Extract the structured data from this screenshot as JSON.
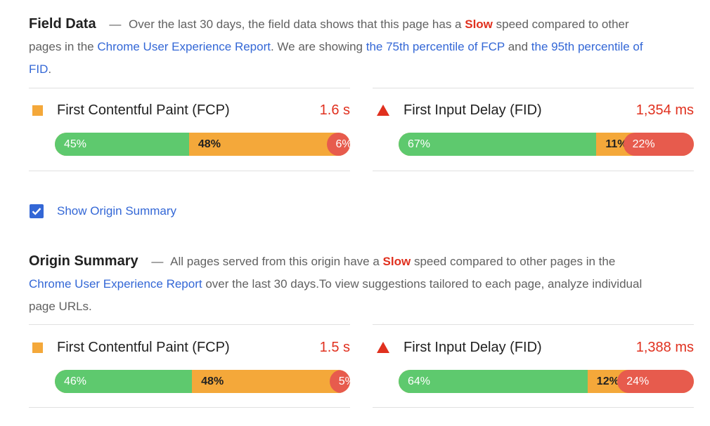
{
  "field_data": {
    "title": "Field Data",
    "dash": "—",
    "desc_1": "Over the last 30 days, the field data shows that this page has a",
    "slow_word": "Slow",
    "desc_2": "speed compared to other pages in the",
    "report_link": "Chrome User Experience Report",
    "desc_3": ". We are showing",
    "fcp_link": "the 75th percentile of FCP",
    "desc_4": "and",
    "fid_link": "the 95th percentile of FID",
    "desc_5": ".",
    "fcp": {
      "label": "First Contentful Paint (FCP)",
      "value": "1.6 s",
      "icon": "orange-square-icon",
      "fast_pct": 45,
      "avg_pct": 48,
      "slow_pct": 6,
      "fast_label": "45%",
      "avg_label": "48%",
      "slow_label": "6%"
    },
    "fid": {
      "label": "First Input Delay (FID)",
      "value": "1,354 ms",
      "icon": "red-triangle-icon",
      "fast_pct": 67,
      "avg_pct": 11,
      "slow_pct": 22,
      "fast_label": "67%",
      "avg_label": "11%",
      "slow_label": "22%"
    }
  },
  "origin_toggle": {
    "label": "Show Origin Summary",
    "checked": true
  },
  "origin_summary": {
    "title": "Origin Summary",
    "dash": "—",
    "desc_1": "All pages served from this origin have a",
    "slow_word": "Slow",
    "desc_2": "speed compared to other pages in the",
    "report_link": "Chrome User Experience Report",
    "desc_3": "over the last 30 days.To view suggestions tailored to each page, analyze individual page URLs.",
    "fcp": {
      "label": "First Contentful Paint (FCP)",
      "value": "1.5 s",
      "icon": "orange-square-icon",
      "fast_pct": 46,
      "avg_pct": 48,
      "slow_pct": 5,
      "fast_label": "46%",
      "avg_label": "48%",
      "slow_label": "5%"
    },
    "fid": {
      "label": "First Input Delay (FID)",
      "value": "1,388 ms",
      "icon": "red-triangle-icon",
      "fast_pct": 64,
      "avg_pct": 12,
      "slow_pct": 24,
      "fast_label": "64%",
      "avg_label": "12%",
      "slow_label": "24%"
    }
  },
  "colors": {
    "fast": "#5ec96e",
    "average": "#f4a83a",
    "slow": "#e75b4d",
    "link": "#3367d6",
    "slow_text": "#e0301e"
  }
}
